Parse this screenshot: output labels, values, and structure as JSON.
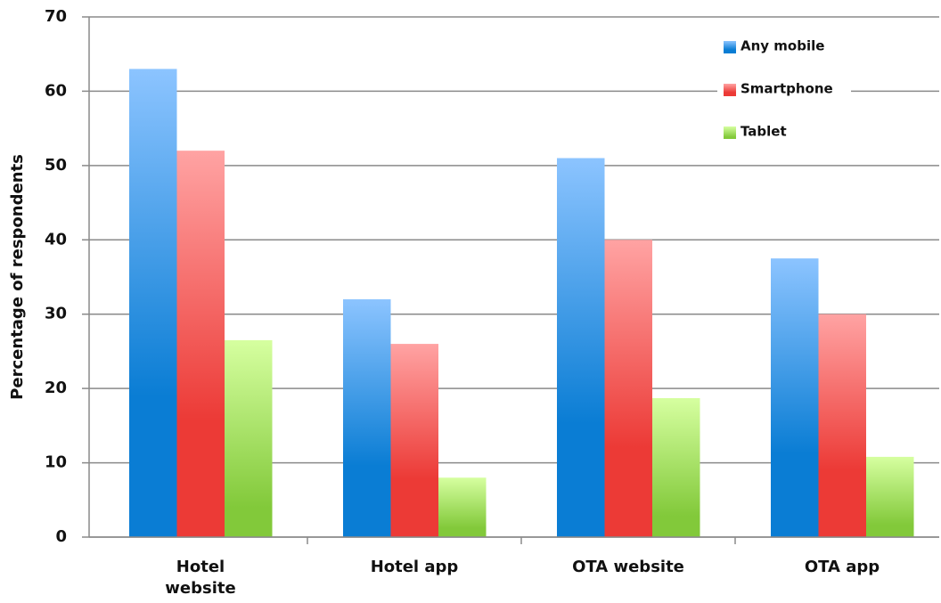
{
  "chart_data": {
    "type": "bar",
    "y_label": "Percentage of respondents",
    "categories": [
      "Hotel\nwebsite",
      "Hotel app",
      "OTA website",
      "OTA app"
    ],
    "series": [
      {
        "name": "Any mobile",
        "color": "#1f8ae0",
        "values": [
          63,
          32,
          51,
          37.5
        ]
      },
      {
        "name": "Smartphone",
        "color": "#f04848",
        "values": [
          52,
          26,
          40,
          30
        ]
      },
      {
        "name": "Tablet",
        "color": "#a8e060",
        "values": [
          26.5,
          8,
          18.7,
          10.8
        ]
      }
    ],
    "ylim": [
      0,
      70
    ],
    "yticks": [
      0,
      10,
      20,
      30,
      40,
      50,
      60,
      70
    ],
    "grid": true,
    "legend": "top-right"
  }
}
